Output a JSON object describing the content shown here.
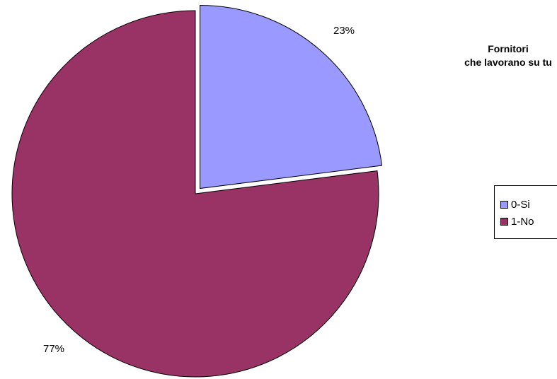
{
  "chart_data": {
    "type": "pie",
    "title": "Fornitori\nche lavorano su tu",
    "title_lines": [
      "Fornitori",
      "che lavorano su tu"
    ],
    "categories": [
      "0-Si",
      "1-No"
    ],
    "values": [
      23,
      77
    ],
    "data_labels": [
      "23%",
      "77%"
    ],
    "colors": [
      "#9999FF",
      "#993366"
    ],
    "legend_position": "right",
    "exploded_slice": "0-Si"
  }
}
